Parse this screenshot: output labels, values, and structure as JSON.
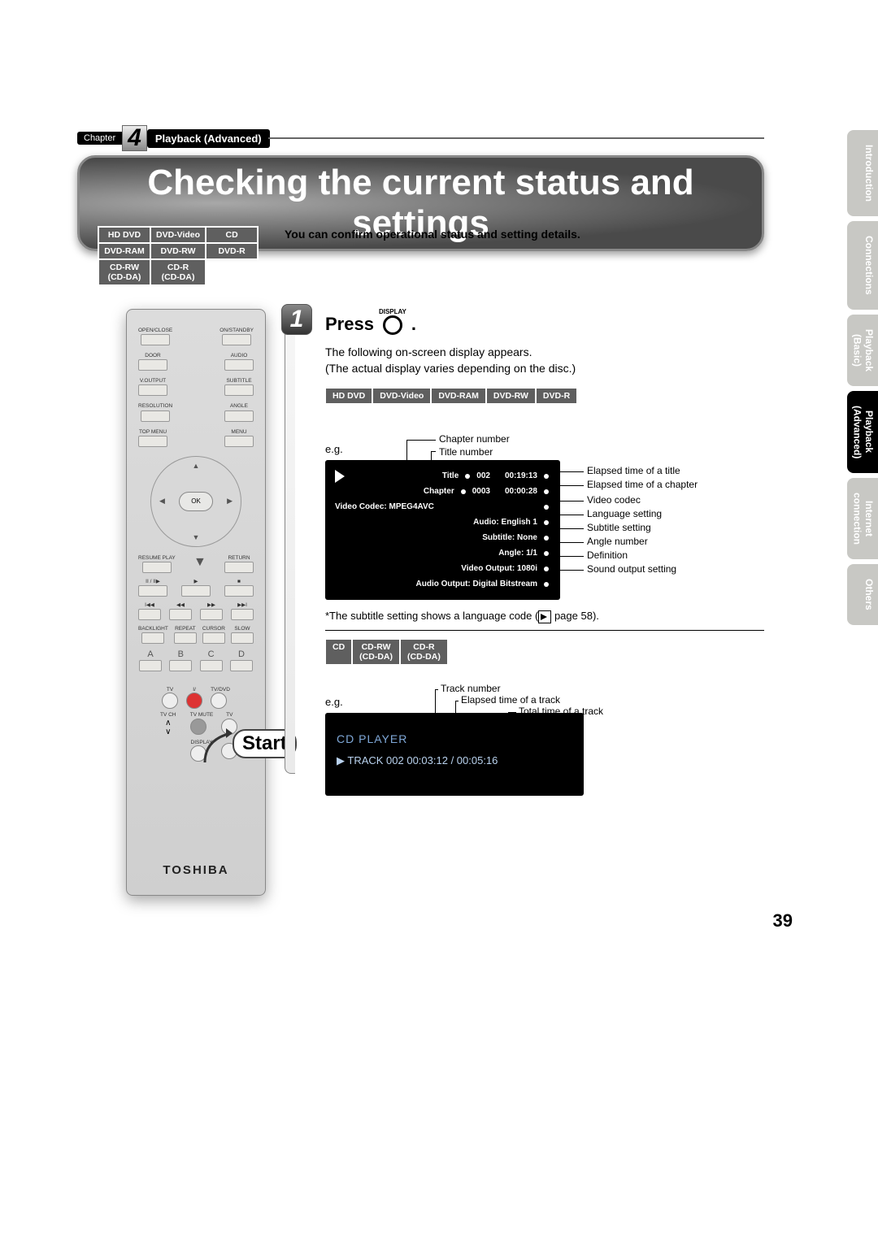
{
  "chapter": {
    "chapter_word": "Chapter",
    "number": "4",
    "section": "Playback (Advanced)"
  },
  "title": "Checking the current status and settings",
  "intro": "You can confirm operational status and setting details.",
  "disc_table": [
    [
      "HD DVD",
      "DVD-Video",
      "CD"
    ],
    [
      "DVD-RAM",
      "DVD-RW",
      "DVD-R"
    ],
    [
      "CD-RW\n(CD-DA)",
      "CD-R\n(CD-DA)",
      ""
    ]
  ],
  "remote": {
    "rows": [
      [
        "OPEN/CLOSE",
        "ON/STANDBY"
      ],
      [
        "DOOR",
        "AUDIO"
      ],
      [
        "V.OUTPUT",
        "SUBTITLE"
      ],
      [
        "RESOLUTION",
        "ANGLE"
      ],
      [
        "TOP MENU",
        "MENU"
      ]
    ],
    "ok": "OK",
    "resume": "RESUME PLAY",
    "return": "RETURN",
    "bottom_row": [
      "BACKLIGHT",
      "REPEAT",
      "CURSOR",
      "SLOW"
    ],
    "letters": [
      "A",
      "B",
      "C",
      "D"
    ],
    "tv": {
      "tv": "TV",
      "io": "I/",
      "tvdvd": "TV/DVD",
      "tvmute": "TV MUTE",
      "tvch": "TV CH",
      "display": "DISPLAY"
    },
    "brand": "TOSHIBA",
    "start": "Start"
  },
  "sidebar": [
    {
      "label": "Introduction",
      "active": false
    },
    {
      "label": "Connections",
      "active": false
    },
    {
      "label": "Playback\n(Basic)",
      "active": false
    },
    {
      "label": "Playback\n(Advanced)",
      "active": true
    },
    {
      "label": "Internet\nconnection",
      "active": false
    },
    {
      "label": "Others",
      "active": false
    }
  ],
  "step": {
    "num": "1",
    "press": "Press",
    "disp_label": "DISPLAY",
    "period": ".",
    "desc1": "The following on-screen display appears.",
    "desc2": "(The actual display varies depending on the disc.)",
    "formats1": [
      "HD DVD",
      "DVD-Video",
      "DVD-RAM",
      "DVD-RW",
      "DVD-R"
    ],
    "eg": "e.g.",
    "callouts": {
      "chapter_number": "Chapter number",
      "title_number": "Title number",
      "elapsed_title": "Elapsed time of a title",
      "elapsed_chapter": "Elapsed time of a chapter",
      "video_codec": "Video codec",
      "language": "Language setting",
      "subtitle": "Subtitle setting",
      "angle": "Angle number",
      "definition": "Definition",
      "sound": "Sound output setting"
    },
    "osd": {
      "title_label": "Title",
      "title_num": "002",
      "title_time": "00:19:13",
      "chapter_label": "Chapter",
      "chapter_num": "0003",
      "chapter_time": "00:00:28",
      "vc": "Video Codec: MPEG4AVC",
      "audio": "Audio: English 1",
      "sub": "Subtitle: None",
      "angle": "Angle: 1/1",
      "vout": "Video Output: 1080i",
      "aout": "Audio Output: Digital Bitstream"
    },
    "footnote_pre": "*The subtitle setting shows a language code (",
    "footnote_post": " page 58).",
    "formats2": [
      "CD",
      "CD-RW\n(CD-DA)",
      "CD-R\n(CD-DA)"
    ],
    "callouts2": {
      "track": "Track number",
      "elapsed": "Elapsed time of a track",
      "total": "Total time of a track"
    },
    "osd2": {
      "title": "CD PLAYER",
      "line": "▶  TRACK  002   00:03:12 / 00:05:16"
    }
  },
  "page_number": "39",
  "colors": {
    "tab_inactive": "#c8c8c4",
    "tab_active": "#000",
    "cell_bg": "#5f5f5f"
  }
}
